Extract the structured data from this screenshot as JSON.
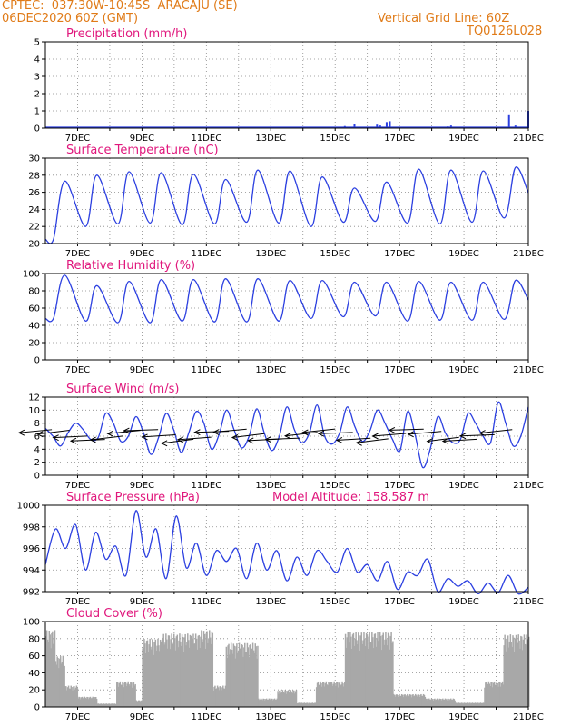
{
  "header": {
    "line1": "CPTEC:  037:30W-10:45S  ARACAJU (SE)",
    "line2": "06DEC2020 60Z (GMT)",
    "grid_note": "Vertical Grid Line: 60Z",
    "code": "TQ0126L028"
  },
  "model_altitude": "Model Altitude: 158.587 m",
  "colors": {
    "header": "#e07b18",
    "title": "#e0177c",
    "line": "#2b3fe0",
    "fill": "#a8a8a8"
  },
  "x_ticks": [
    "7DEC",
    "9DEC",
    "11DEC",
    "13DEC",
    "15DEC",
    "17DEC",
    "19DEC",
    "21DEC"
  ],
  "chart_data": [
    {
      "type": "bar",
      "title": "Precipitation (mm/h)",
      "ylim": [
        0,
        5
      ],
      "yticks": [
        "0",
        "1",
        "2",
        "3",
        "4",
        "5"
      ],
      "x_range_days": [
        6.0,
        21.0
      ],
      "points": [
        [
          7.2,
          0.04
        ],
        [
          8.1,
          0.03
        ],
        [
          9.3,
          0.05
        ],
        [
          10.5,
          0.03
        ],
        [
          13.4,
          0.03
        ],
        [
          15.3,
          0.12
        ],
        [
          15.6,
          0.25
        ],
        [
          16.3,
          0.2
        ],
        [
          16.4,
          0.15
        ],
        [
          16.6,
          0.35
        ],
        [
          16.7,
          0.4
        ],
        [
          17.5,
          0.05
        ],
        [
          18.5,
          0.1
        ],
        [
          18.6,
          0.15
        ],
        [
          20.4,
          0.8
        ],
        [
          20.6,
          0.15
        ],
        [
          21.0,
          1.0
        ]
      ]
    },
    {
      "type": "line",
      "title": "Surface Temperature (nC)",
      "ylim": [
        20,
        30
      ],
      "yticks": [
        "20",
        "22",
        "24",
        "26",
        "28",
        "30"
      ],
      "x_range_days": [
        6.0,
        21.0
      ],
      "mean": 25.2,
      "amplitude": 3.0,
      "peaks": [
        27.3,
        28.0,
        28.4,
        28.3,
        28.1,
        27.5,
        28.6,
        28.5,
        27.8,
        26.5,
        27.2,
        28.7,
        28.6,
        28.5,
        28.9
      ],
      "troughs": [
        20.5,
        22.0,
        22.3,
        22.4,
        22.2,
        22.3,
        22.5,
        22.4,
        22.0,
        22.5,
        22.6,
        22.4,
        22.3,
        22.5,
        23.0
      ]
    },
    {
      "type": "line",
      "title": "Relative Humidity (%)",
      "ylim": [
        0,
        100
      ],
      "yticks": [
        "0",
        "20",
        "40",
        "60",
        "80",
        "100"
      ],
      "x_range_days": [
        6.0,
        21.0
      ],
      "peaks": [
        98,
        86,
        91,
        93,
        93,
        94,
        94,
        92,
        92,
        90,
        90,
        91,
        90,
        90,
        92
      ],
      "troughs": [
        48,
        45,
        43,
        43,
        45,
        44,
        44,
        45,
        48,
        50,
        51,
        45,
        46,
        46,
        47
      ]
    },
    {
      "type": "line",
      "title": "Surface Wind (m/s)",
      "ylim": [
        0,
        12
      ],
      "yticks": [
        "0",
        "2",
        "4",
        "6",
        "8",
        "10",
        "12"
      ],
      "x_range_days": [
        6.0,
        21.0
      ],
      "values": [
        7.2,
        6.0,
        4.5,
        6.5,
        8.0,
        7.0,
        5.5,
        5.8,
        9.5,
        8.0,
        5.2,
        6.0,
        9.0,
        6.5,
        3.2,
        5.8,
        9.5,
        7.0,
        3.5,
        6.5,
        9.8,
        8.0,
        4.0,
        6.2,
        10.0,
        7.0,
        4.2,
        6.0,
        10.2,
        6.5,
        3.8,
        6.0,
        10.5,
        7.0,
        5.0,
        6.5,
        10.8,
        6.0,
        4.8,
        6.5,
        10.5,
        7.5,
        5.2,
        6.8,
        10.0,
        8.0,
        5.5,
        3.8,
        9.8,
        6.2,
        1.2,
        4.0,
        9.0,
        6.5,
        5.0,
        5.5,
        9.5,
        8.0,
        6.0,
        5.0,
        11.2,
        8.0,
        4.5,
        6.0,
        10.5
      ]
    },
    {
      "type": "line",
      "title": "Surface Pressure (hPa)",
      "ylim": [
        992,
        1000
      ],
      "yticks": [
        "992",
        "994",
        "996",
        "998",
        "1000"
      ],
      "x_range_days": [
        6.0,
        21.0
      ],
      "values": [
        994.5,
        997.8,
        996.0,
        998.2,
        994.0,
        997.5,
        995.0,
        996.2,
        993.5,
        999.5,
        995.2,
        997.8,
        993.2,
        999.0,
        994.2,
        996.5,
        993.5,
        995.8,
        994.8,
        996.0,
        993.2,
        996.5,
        994.0,
        995.8,
        993.0,
        995.2,
        993.5,
        995.8,
        994.8,
        993.8,
        996.0,
        993.8,
        994.5,
        993.0,
        994.8,
        992.2,
        993.8,
        993.5,
        995.0,
        992.0,
        993.2,
        992.5,
        993.0,
        991.8,
        992.8,
        991.9,
        993.5,
        991.8,
        992.4
      ]
    },
    {
      "type": "area",
      "title": "Cloud Cover (%)",
      "ylim": [
        0,
        100
      ],
      "yticks": [
        "0",
        "20",
        "40",
        "60",
        "80",
        "100"
      ],
      "x_range_days": [
        6.0,
        21.0
      ],
      "segments": [
        {
          "from": 6.0,
          "to": 6.3,
          "level": 90
        },
        {
          "from": 6.3,
          "to": 6.6,
          "level": 60
        },
        {
          "from": 6.6,
          "to": 7.0,
          "level": 25
        },
        {
          "from": 7.0,
          "to": 7.6,
          "level": 12
        },
        {
          "from": 7.6,
          "to": 8.2,
          "level": 4
        },
        {
          "from": 8.2,
          "to": 8.8,
          "level": 30
        },
        {
          "from": 8.8,
          "to": 9.0,
          "level": 8
        },
        {
          "from": 9.0,
          "to": 9.6,
          "level": 80
        },
        {
          "from": 9.6,
          "to": 10.8,
          "level": 86
        },
        {
          "from": 10.8,
          "to": 11.2,
          "level": 90
        },
        {
          "from": 11.2,
          "to": 11.6,
          "level": 25
        },
        {
          "from": 11.6,
          "to": 12.6,
          "level": 75
        },
        {
          "from": 12.6,
          "to": 13.2,
          "level": 10
        },
        {
          "from": 13.2,
          "to": 13.8,
          "level": 20
        },
        {
          "from": 13.8,
          "to": 14.4,
          "level": 5
        },
        {
          "from": 14.4,
          "to": 15.3,
          "level": 30
        },
        {
          "from": 15.3,
          "to": 16.8,
          "level": 88
        },
        {
          "from": 16.8,
          "to": 17.8,
          "level": 15
        },
        {
          "from": 17.8,
          "to": 18.7,
          "level": 10
        },
        {
          "from": 18.7,
          "to": 19.6,
          "level": 5
        },
        {
          "from": 19.6,
          "to": 20.2,
          "level": 30
        },
        {
          "from": 20.2,
          "to": 21.0,
          "level": 85
        }
      ]
    }
  ]
}
